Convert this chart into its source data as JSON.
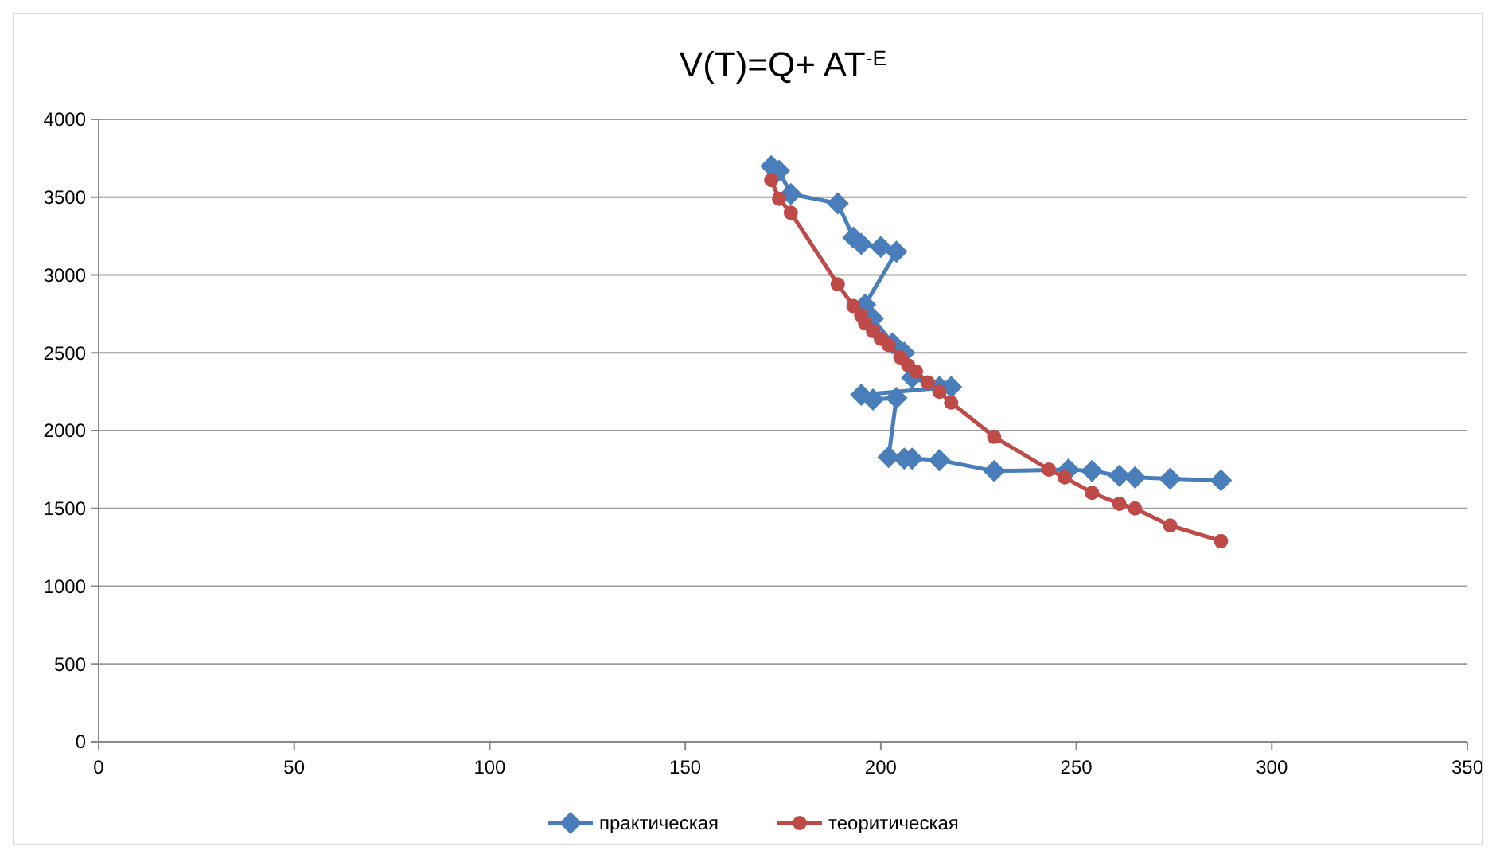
{
  "chart_data": {
    "type": "line",
    "title": "V(T)=Q+ AT$^{-E}$",
    "xlim": [
      0,
      350
    ],
    "xticks": [
      0,
      50,
      100,
      150,
      200,
      250,
      300,
      350
    ],
    "ylim": [
      0,
      4000
    ],
    "yticks": [
      0,
      500,
      1000,
      1500,
      2000,
      2500,
      3000,
      3500,
      4000
    ],
    "grid": "y",
    "legend": "bottom",
    "line_style": "solid",
    "series": [
      {
        "name": "практическая",
        "color": "#4a7ebb",
        "marker": "diamond",
        "x": [
          172,
          174,
          177,
          189,
          193,
          195,
          200,
          204,
          196,
          198,
          203,
          206,
          208,
          215,
          218,
          195,
          198,
          204,
          202,
          206,
          208,
          215,
          229,
          248,
          254,
          261,
          265,
          274,
          287
        ],
        "values": [
          3700,
          3670,
          3520,
          3460,
          3240,
          3200,
          3180,
          3150,
          2810,
          2720,
          2560,
          2500,
          2340,
          2280,
          2280,
          2230,
          2200,
          2210,
          1830,
          1820,
          1820,
          1810,
          1740,
          1750,
          1740,
          1710,
          1700,
          1690,
          1680
        ]
      },
      {
        "name": "теоритическая",
        "color": "#be4b48",
        "marker": "circle",
        "x": [
          172,
          174,
          177,
          189,
          193,
          195,
          196,
          198,
          200,
          202,
          205,
          207,
          209,
          212,
          215,
          218,
          229,
          243,
          247,
          254,
          261,
          265,
          274,
          287
        ],
        "values": [
          3610,
          3490,
          3400,
          2940,
          2800,
          2740,
          2690,
          2640,
          2590,
          2550,
          2470,
          2420,
          2380,
          2310,
          2250,
          2180,
          1960,
          1750,
          1700,
          1600,
          1530,
          1500,
          1390,
          1290
        ]
      }
    ]
  }
}
